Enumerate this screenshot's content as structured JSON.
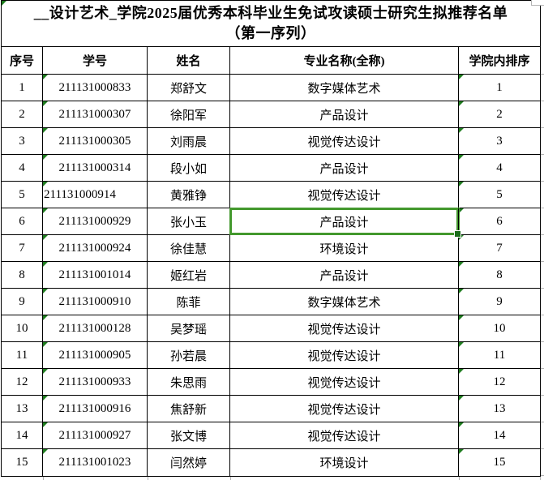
{
  "title": {
    "line1": "__设计艺术_学院2025届优秀本科毕业生免试攻读硕士研究生拟推荐名单",
    "line2": "（第一序列）"
  },
  "table": {
    "columns": [
      {
        "key": "no",
        "label": "序号",
        "triangle": false
      },
      {
        "key": "student_id",
        "label": "学号",
        "triangle": true
      },
      {
        "key": "name",
        "label": "姓名",
        "triangle": false
      },
      {
        "key": "major",
        "label": "专业名称(全称)",
        "triangle": false
      },
      {
        "key": "rank",
        "label": "学院内排序",
        "triangle": true
      }
    ],
    "rows": [
      {
        "no": "1",
        "student_id": "211131000833",
        "name": "郑舒文",
        "major": "数字媒体艺术",
        "rank": "1"
      },
      {
        "no": "2",
        "student_id": "211131000307",
        "name": "徐阳军",
        "major": "产品设计",
        "rank": "2"
      },
      {
        "no": "3",
        "student_id": "211131000305",
        "name": "刘雨晨",
        "major": "视觉传达设计",
        "rank": "3"
      },
      {
        "no": "4",
        "student_id": "211131000314",
        "name": "段小如",
        "major": "产品设计",
        "rank": "4"
      },
      {
        "no": "5",
        "student_id": "211131000914",
        "name": "黄雅铮",
        "major": "视觉传达设计",
        "rank": "5",
        "id_text_align": "left"
      },
      {
        "no": "6",
        "student_id": "211131000929",
        "name": "张小玉",
        "major": "产品设计",
        "rank": "6"
      },
      {
        "no": "7",
        "student_id": "211131000924",
        "name": "徐佳慧",
        "major": "环境设计",
        "rank": "7"
      },
      {
        "no": "8",
        "student_id": "211131001014",
        "name": "姬红岩",
        "major": "产品设计",
        "rank": "8"
      },
      {
        "no": "9",
        "student_id": "211131000910",
        "name": "陈菲",
        "major": "数字媒体艺术",
        "rank": "9"
      },
      {
        "no": "10",
        "student_id": "211131000128",
        "name": "吴梦瑶",
        "major": "视觉传达设计",
        "rank": "10"
      },
      {
        "no": "11",
        "student_id": "211131000905",
        "name": "孙若晨",
        "major": "视觉传达设计",
        "rank": "11"
      },
      {
        "no": "12",
        "student_id": "211131000933",
        "name": "朱思雨",
        "major": "视觉传达设计",
        "rank": "12"
      },
      {
        "no": "13",
        "student_id": "211131000916",
        "name": "焦舒新",
        "major": "视觉传达设计",
        "rank": "13"
      },
      {
        "no": "14",
        "student_id": "211131000927",
        "name": "张文博",
        "major": "视觉传达设计",
        "rank": "14"
      },
      {
        "no": "15",
        "student_id": "211131001023",
        "name": "闫然婷",
        "major": "环境设计",
        "rank": "15"
      }
    ],
    "selected_cell": {
      "row_index": 5,
      "column": "major"
    }
  },
  "colors": {
    "selection_border_green": "#43982d",
    "fill_handle_green": "#1b6e1b",
    "error_triangle_green": "#1f7d1f",
    "table_border_black": "#000000",
    "sheet_gridline_gray": "#b3b3b3",
    "background": "#ffffff"
  }
}
